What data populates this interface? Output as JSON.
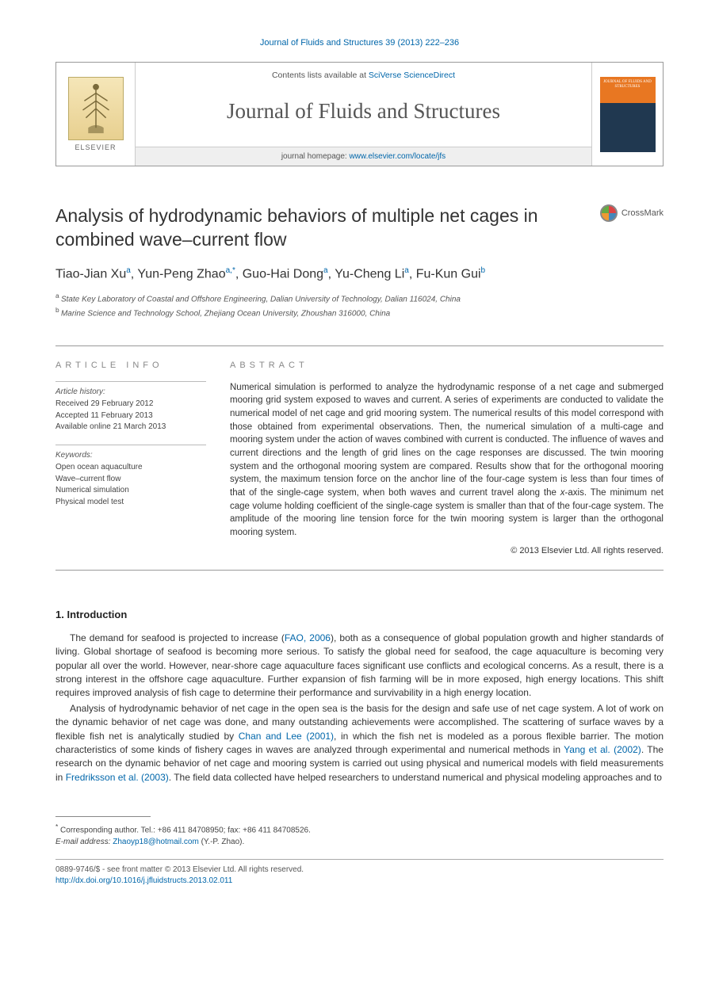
{
  "header": {
    "citation": "Journal of Fluids and Structures 39 (2013) 222–236",
    "contents_prefix": "Contents lists available at ",
    "contents_link": "SciVerse ScienceDirect",
    "journal_name": "Journal of Fluids and Structures",
    "homepage_prefix": "journal homepage: ",
    "homepage_url": "www.elsevier.com/locate/jfs",
    "publisher": "ELSEVIER",
    "cover_text": "JOURNAL OF FLUIDS AND STRUCTURES"
  },
  "crossmark": {
    "label": "CrossMark"
  },
  "article": {
    "title": "Analysis of hydrodynamic behaviors of multiple net cages in combined wave–current flow",
    "authors_html": "Tiao-Jian Xu|a|, Yun-Peng Zhao|a,*|, Guo-Hai Dong|a|, Yu-Cheng Li|a|, Fu-Kun Gui|b",
    "affiliations": [
      {
        "sup": "a",
        "text": "State Key Laboratory of Coastal and Offshore Engineering, Dalian University of Technology, Dalian 116024, China"
      },
      {
        "sup": "b",
        "text": "Marine Science and Technology School, Zhejiang Ocean University, Zhoushan 316000, China"
      }
    ]
  },
  "info": {
    "heading": "ARTICLE INFO",
    "history_label": "Article history:",
    "history": [
      "Received 29 February 2012",
      "Accepted 11 February 2013",
      "Available online 21 March 2013"
    ],
    "keywords_label": "Keywords:",
    "keywords": [
      "Open ocean aquaculture",
      "Wave–current flow",
      "Numerical simulation",
      "Physical model test"
    ]
  },
  "abstract": {
    "heading": "ABSTRACT",
    "text": "Numerical simulation is performed to analyze the hydrodynamic response of a net cage and submerged mooring grid system exposed to waves and current. A series of experiments are conducted to validate the numerical model of net cage and grid mooring system. The numerical results of this model correspond with those obtained from experimental observations. Then, the numerical simulation of a multi-cage and mooring system under the action of waves combined with current is conducted. The influence of waves and current directions and the length of grid lines on the cage responses are discussed. The twin mooring system and the orthogonal mooring system are compared. Results show that for the orthogonal mooring system, the maximum tension force on the anchor line of the four-cage system is less than four times of that of the single-cage system, when both waves and current travel along the x-axis. The minimum net cage volume holding coefficient of the single-cage system is smaller than that of the four-cage system. The amplitude of the mooring line tension force for the twin mooring system is larger than the orthogonal mooring system.",
    "copyright": "© 2013 Elsevier Ltd. All rights reserved."
  },
  "sections": {
    "intro_heading": "1. Introduction",
    "para1_pre": "The demand for seafood is projected to increase (",
    "para1_link1": "FAO, 2006",
    "para1_post": "), both as a consequence of global population growth and higher standards of living. Global shortage of seafood is becoming more serious. To satisfy the global need for seafood, the cage aquaculture is becoming very popular all over the world. However, near-shore cage aquaculture faces significant use conflicts and ecological concerns. As a result, there is a strong interest in the offshore cage aquaculture. Further expansion of fish farming will be in more exposed, high energy locations. This shift requires improved analysis of fish cage to determine their performance and survivability in a high energy location.",
    "para2_a": "Analysis of hydrodynamic behavior of net cage in the open sea is the basis for the design and safe use of net cage system. A lot of work on the dynamic behavior of net cage was done, and many outstanding achievements were accomplished. The scattering of surface waves by a flexible fish net is analytically studied by ",
    "para2_link1": "Chan and Lee (2001)",
    "para2_b": ", in which the fish net is modeled as a porous flexible barrier. The motion characteristics of some kinds of fishery cages in waves are analyzed through experimental and numerical methods in ",
    "para2_link2": "Yang et al. (2002)",
    "para2_c": ". The research on the dynamic behavior of net cage and mooring system is carried out using physical and numerical models with field measurements in ",
    "para2_link3": "Fredriksson et al. (2003)",
    "para2_d": ". The field data collected have helped researchers to understand numerical and physical modeling approaches and to"
  },
  "footer": {
    "corresponding_marker": "*",
    "corresponding_text": "Corresponding author. Tel.: +86 411 84708950; fax: +86 411 84708526.",
    "email_label": "E-mail address: ",
    "email": "Zhaoyp18@hotmail.com",
    "email_who": " (Y.-P. Zhao).",
    "issn_line": "0889-9746/$ - see front matter © 2013 Elsevier Ltd. All rights reserved.",
    "doi_line": "http://dx.doi.org/10.1016/j.jfluidstructs.2013.02.011"
  },
  "colors": {
    "link": "#0066aa",
    "text": "#333333",
    "cover_orange": "#e87722",
    "cover_blue": "#203850"
  }
}
